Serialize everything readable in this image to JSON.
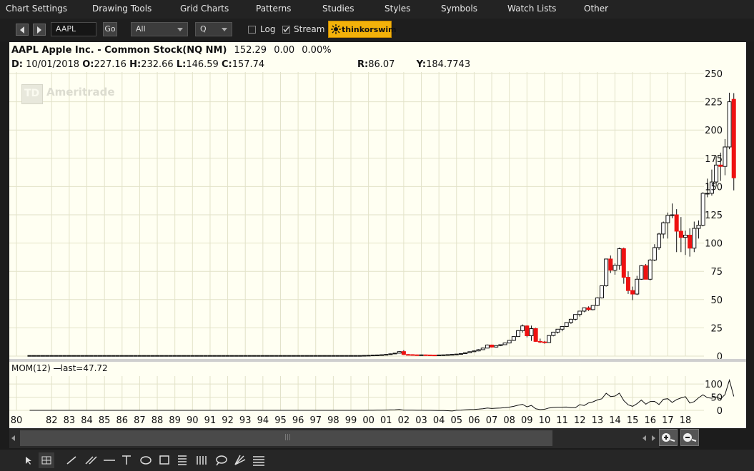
{
  "menu": [
    "Chart Settings",
    "Drawing Tools",
    "Grid Charts",
    "Patterns",
    "Studies",
    "Styles",
    "Symbols",
    "Watch Lists",
    "Other"
  ],
  "toolbar": {
    "symbol": "AAPL",
    "go_label": "Go",
    "range_value": "All",
    "aggregation_value": "Q",
    "log_label": "Log",
    "log_checked": false,
    "stream_label": "Stream",
    "stream_checked": true,
    "logo_text": "thinkorswim"
  },
  "header": {
    "title": "AAPL Apple Inc. - Common Stock(NQ NM)",
    "last": "152.29",
    "change": "0.00",
    "pct": "0.00%",
    "d_label": "D:",
    "d_value": "10/01/2018",
    "o_label": "O:",
    "o_value": "227.16",
    "h_label": "H:",
    "h_value": "232.66",
    "l_label": "L:",
    "l_value": "146.59",
    "c_label": "C:",
    "c_value": "157.74",
    "r_label": "R:",
    "r_value": "86.07",
    "y_label": "Y:",
    "y_value": "184.7743"
  },
  "watermark": "Ameritrade",
  "mom_label": "MOM(12)",
  "mom_last": "last=47.72",
  "chart_data": [
    {
      "type": "candlestick",
      "title": "AAPL Apple Inc. - Common Stock(NQ NM)",
      "xlabel": "",
      "ylabel": "",
      "ylim": [
        0,
        250
      ],
      "y_ticks": [
        0,
        25,
        50,
        75,
        100,
        125,
        150,
        175,
        200,
        225,
        250
      ],
      "x_tick_labels": [
        "80",
        "82",
        "83",
        "84",
        "85",
        "86",
        "87",
        "88",
        "89",
        "90",
        "91",
        "92",
        "93",
        "94",
        "95",
        "96",
        "97",
        "98",
        "99",
        "00",
        "01",
        "02",
        "03",
        "04",
        "05",
        "06",
        "07",
        "08",
        "09",
        "10",
        "11",
        "12",
        "13",
        "14",
        "15",
        "16",
        "17",
        "18"
      ],
      "x_start_year": 1980.75,
      "quarter_step": 0.25,
      "ohlc": [
        [
          0.5,
          0.6,
          0.4,
          0.5
        ],
        [
          0.5,
          0.6,
          0.4,
          0.5
        ],
        [
          0.5,
          0.6,
          0.4,
          0.5
        ],
        [
          0.5,
          0.6,
          0.4,
          0.5
        ],
        [
          0.5,
          0.6,
          0.4,
          0.5
        ],
        [
          0.5,
          0.6,
          0.4,
          0.5
        ],
        [
          0.5,
          0.6,
          0.4,
          0.5
        ],
        [
          0.5,
          0.6,
          0.4,
          0.5
        ],
        [
          0.5,
          0.6,
          0.4,
          0.5
        ],
        [
          0.5,
          0.6,
          0.4,
          0.5
        ],
        [
          0.5,
          0.6,
          0.4,
          0.5
        ],
        [
          0.5,
          0.6,
          0.4,
          0.5
        ],
        [
          0.5,
          0.6,
          0.4,
          0.5
        ],
        [
          0.5,
          0.6,
          0.4,
          0.5
        ],
        [
          0.5,
          0.6,
          0.4,
          0.5
        ],
        [
          0.5,
          0.6,
          0.4,
          0.5
        ],
        [
          0.5,
          0.6,
          0.4,
          0.5
        ],
        [
          0.5,
          0.6,
          0.4,
          0.5
        ],
        [
          0.5,
          0.6,
          0.4,
          0.5
        ],
        [
          0.5,
          0.6,
          0.4,
          0.5
        ],
        [
          0.5,
          0.6,
          0.4,
          0.5
        ],
        [
          0.5,
          0.6,
          0.4,
          0.5
        ],
        [
          0.5,
          0.6,
          0.4,
          0.5
        ],
        [
          0.5,
          0.6,
          0.4,
          0.5
        ],
        [
          0.5,
          0.6,
          0.4,
          0.5
        ],
        [
          0.5,
          0.6,
          0.4,
          0.5
        ],
        [
          0.5,
          0.6,
          0.4,
          0.5
        ],
        [
          0.5,
          0.6,
          0.4,
          0.5
        ],
        [
          0.5,
          0.6,
          0.4,
          0.5
        ],
        [
          0.5,
          0.6,
          0.4,
          0.5
        ],
        [
          0.5,
          0.6,
          0.4,
          0.5
        ],
        [
          0.5,
          0.6,
          0.4,
          0.5
        ],
        [
          0.5,
          0.6,
          0.4,
          0.5
        ],
        [
          0.5,
          0.6,
          0.4,
          0.5
        ],
        [
          0.5,
          0.6,
          0.4,
          0.5
        ],
        [
          0.5,
          0.6,
          0.4,
          0.5
        ],
        [
          0.5,
          0.6,
          0.4,
          0.5
        ],
        [
          0.5,
          0.6,
          0.4,
          0.5
        ],
        [
          0.5,
          0.6,
          0.4,
          0.5
        ],
        [
          0.5,
          0.6,
          0.4,
          0.5
        ],
        [
          0.5,
          0.6,
          0.4,
          0.5
        ],
        [
          0.5,
          0.6,
          0.4,
          0.5
        ],
        [
          0.5,
          0.6,
          0.4,
          0.5
        ],
        [
          0.5,
          0.6,
          0.4,
          0.5
        ],
        [
          0.5,
          0.6,
          0.4,
          0.5
        ],
        [
          0.5,
          0.6,
          0.4,
          0.5
        ],
        [
          0.5,
          0.6,
          0.4,
          0.5
        ],
        [
          0.5,
          0.6,
          0.4,
          0.5
        ],
        [
          0.5,
          0.6,
          0.4,
          0.5
        ],
        [
          0.5,
          0.6,
          0.4,
          0.5
        ],
        [
          0.5,
          0.6,
          0.4,
          0.5
        ],
        [
          0.5,
          0.6,
          0.4,
          0.5
        ],
        [
          0.5,
          0.6,
          0.4,
          0.5
        ],
        [
          0.5,
          0.6,
          0.4,
          0.5
        ],
        [
          0.5,
          0.6,
          0.4,
          0.5
        ],
        [
          0.5,
          0.6,
          0.4,
          0.5
        ],
        [
          0.5,
          0.6,
          0.4,
          0.5
        ],
        [
          0.5,
          0.6,
          0.4,
          0.5
        ],
        [
          0.5,
          0.6,
          0.4,
          0.5
        ],
        [
          0.5,
          0.6,
          0.4,
          0.5
        ],
        [
          0.5,
          0.6,
          0.4,
          0.5
        ],
        [
          0.5,
          0.6,
          0.4,
          0.5
        ],
        [
          0.5,
          0.6,
          0.4,
          0.5
        ],
        [
          0.5,
          0.6,
          0.4,
          0.5
        ],
        [
          0.5,
          0.6,
          0.4,
          0.5
        ],
        [
          0.5,
          0.6,
          0.4,
          0.5
        ],
        [
          0.5,
          0.6,
          0.4,
          0.5
        ],
        [
          0.5,
          0.6,
          0.4,
          0.5
        ],
        [
          0.5,
          0.6,
          0.4,
          0.5
        ],
        [
          0.5,
          0.6,
          0.4,
          0.5
        ],
        [
          0.5,
          0.6,
          0.4,
          0.5
        ],
        [
          0.5,
          0.6,
          0.4,
          0.5
        ],
        [
          0.5,
          0.6,
          0.4,
          0.5
        ],
        [
          0.5,
          0.6,
          0.4,
          0.5
        ],
        [
          0.5,
          0.6,
          0.4,
          0.5
        ],
        [
          0.5,
          0.6,
          0.4,
          0.5
        ],
        [
          0.5,
          0.7,
          0.4,
          0.6
        ],
        [
          0.6,
          0.8,
          0.5,
          0.7
        ],
        [
          0.7,
          1.0,
          0.6,
          0.9
        ],
        [
          0.9,
          1.3,
          0.8,
          1.0
        ],
        [
          1.0,
          1.4,
          0.9,
          1.2
        ],
        [
          1.2,
          1.7,
          1.1,
          1.5
        ],
        [
          1.5,
          2.3,
          1.3,
          2.0
        ],
        [
          2.0,
          2.8,
          1.8,
          2.6
        ],
        [
          2.6,
          4.5,
          2.4,
          4.0
        ],
        [
          4.0,
          5.2,
          1.2,
          1.4
        ],
        [
          1.4,
          1.8,
          1.0,
          1.3
        ],
        [
          1.3,
          1.6,
          0.9,
          1.1
        ],
        [
          1.1,
          1.4,
          0.9,
          1.0
        ],
        [
          1.0,
          1.3,
          0.8,
          1.1
        ],
        [
          1.1,
          1.3,
          0.8,
          1.0
        ],
        [
          1.0,
          1.2,
          0.8,
          0.9
        ],
        [
          0.9,
          1.1,
          0.7,
          0.8
        ],
        [
          0.8,
          1.1,
          0.7,
          1.0
        ],
        [
          1.0,
          1.3,
          0.9,
          1.1
        ],
        [
          1.1,
          1.4,
          1.0,
          1.3
        ],
        [
          1.3,
          1.7,
          1.2,
          1.5
        ],
        [
          1.5,
          1.9,
          1.3,
          1.8
        ],
        [
          1.8,
          2.4,
          1.7,
          2.2
        ],
        [
          2.2,
          3.4,
          2.1,
          3.0
        ],
        [
          3.0,
          4.2,
          2.8,
          3.9
        ],
        [
          3.9,
          5.1,
          3.6,
          4.6
        ],
        [
          4.6,
          6.2,
          4.3,
          5.7
        ],
        [
          5.7,
          7.6,
          5.4,
          7.1
        ],
        [
          7.1,
          10.3,
          6.9,
          9.8
        ],
        [
          9.8,
          10.2,
          7.5,
          8.0
        ],
        [
          8.0,
          9.5,
          7.7,
          9.3
        ],
        [
          9.3,
          10.3,
          8.8,
          10.1
        ],
        [
          10.1,
          12.0,
          9.8,
          11.6
        ],
        [
          11.6,
          14.3,
          11.3,
          13.9
        ],
        [
          13.9,
          17.5,
          13.5,
          17.3
        ],
        [
          17.3,
          23.0,
          17.0,
          22.5
        ],
        [
          22.5,
          28.0,
          20.8,
          26.7
        ],
        [
          26.7,
          27.2,
          16.6,
          18.0
        ],
        [
          18.0,
          27.0,
          13.5,
          24.3
        ],
        [
          24.3,
          25.0,
          12.7,
          13.0
        ],
        [
          13.0,
          15.5,
          11.5,
          12.5
        ],
        [
          12.5,
          13.5,
          11.0,
          12.0
        ],
        [
          12.0,
          18.5,
          11.8,
          18.2
        ],
        [
          18.2,
          21.5,
          17.5,
          21.2
        ],
        [
          21.2,
          24.0,
          20.0,
          23.8
        ],
        [
          23.8,
          26.5,
          22.0,
          26.2
        ],
        [
          26.2,
          30.0,
          25.8,
          29.7
        ],
        [
          29.7,
          33.0,
          28.5,
          32.6
        ],
        [
          32.6,
          37.0,
          31.5,
          36.8
        ],
        [
          36.8,
          40.0,
          35.0,
          39.8
        ],
        [
          39.8,
          43.0,
          38.8,
          42.7
        ],
        [
          42.7,
          44.0,
          40.0,
          41.1
        ],
        [
          41.1,
          45.0,
          40.5,
          44.8
        ],
        [
          44.8,
          52.0,
          44.3,
          51.5
        ],
        [
          51.5,
          62.5,
          51.0,
          62.2
        ],
        [
          62.2,
          86.0,
          61.5,
          85.9
        ],
        [
          85.9,
          89.0,
          73.5,
          76.0
        ],
        [
          76.0,
          82.0,
          72.0,
          80.3
        ],
        [
          80.3,
          96.0,
          76.5,
          95.0
        ],
        [
          95.0,
          96.0,
          64.0,
          69.7
        ],
        [
          69.7,
          75.0,
          55.0,
          58.0
        ],
        [
          58.0,
          61.5,
          49.5,
          54.9
        ],
        [
          54.9,
          71.0,
          54.0,
          68.0
        ],
        [
          68.0,
          80.5,
          67.5,
          80.0
        ],
        [
          80.0,
          81.5,
          68.0,
          68.0
        ],
        [
          68.0,
          86.0,
          67.0,
          85.0
        ],
        [
          85.0,
          99.0,
          84.0,
          96.0
        ],
        [
          96.0,
          109.0,
          94.0,
          108.0
        ],
        [
          108.0,
          119.0,
          104.0,
          118.0
        ],
        [
          118.0,
          127.0,
          104.0,
          124.5
        ],
        [
          124.5,
          135.0,
          122.0,
          125.0
        ],
        [
          125.0,
          130.0,
          92.0,
          110.5
        ],
        [
          110.5,
          123.0,
          92.0,
          105.0
        ],
        [
          105.0,
          111.0,
          89.5,
          107.0
        ],
        [
          107.0,
          113.0,
          88.0,
          95.5
        ],
        [
          95.5,
          119.0,
          92.0,
          113.0
        ],
        [
          113.0,
          120.0,
          104.0,
          115.8
        ],
        [
          115.8,
          145.0,
          114.8,
          144.0
        ],
        [
          144.0,
          157.0,
          140.5,
          144.0
        ],
        [
          144.0,
          165.0,
          142.0,
          154.0
        ],
        [
          154.0,
          177.0,
          150.0,
          169.0
        ],
        [
          169.0,
          180.0,
          155.0,
          167.8
        ],
        [
          167.8,
          192.0,
          160.0,
          185.0
        ],
        [
          185.0,
          233.0,
          183.0,
          225.0
        ],
        [
          227.16,
          232.66,
          146.59,
          157.74
        ]
      ]
    },
    {
      "type": "line",
      "title": "MOM(12)",
      "name": "MOM(12)",
      "ylim": [
        0,
        130
      ],
      "y_ticks": [
        0,
        50,
        100
      ],
      "last": 47.72
    }
  ],
  "colors": {
    "up": "#ffffff",
    "down": "#ee1111",
    "wick": "#111111",
    "grid": "#e2e2c8",
    "bg": "#fffff2",
    "logo": "#f2b10a"
  }
}
